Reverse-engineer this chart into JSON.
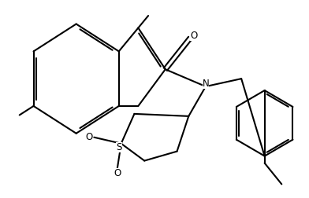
{
  "bg_color": "#ffffff",
  "line_color": "#000000",
  "lw": 1.5,
  "fig_width": 3.92,
  "fig_height": 2.52,
  "dpi": 100,
  "xlim": [
    0,
    10
  ],
  "ylim": [
    0,
    6.5
  ]
}
